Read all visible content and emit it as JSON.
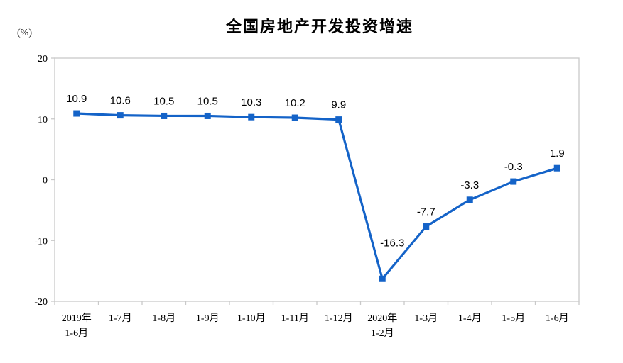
{
  "chart_data": {
    "type": "line",
    "title": "全国房地产开发投资增速",
    "unit": "(%)",
    "categories": [
      [
        "2019年",
        "1-6月"
      ],
      [
        "1-7月"
      ],
      [
        "1-8月"
      ],
      [
        "1-9月"
      ],
      [
        "1-10月"
      ],
      [
        "1-11月"
      ],
      [
        "1-12月"
      ],
      [
        "2020年",
        "1-2月"
      ],
      [
        "1-3月"
      ],
      [
        "1-4月"
      ],
      [
        "1-5月"
      ],
      [
        "1-6月"
      ]
    ],
    "values": [
      10.9,
      10.6,
      10.5,
      10.5,
      10.3,
      10.2,
      9.9,
      -16.3,
      -7.7,
      -3.3,
      -0.3,
      1.9
    ],
    "point_labels": [
      "10.9",
      "10.6",
      "10.5",
      "10.5",
      "10.3",
      "10.2",
      "9.9",
      "-16.3",
      "-7.7",
      "-3.3",
      "-0.3",
      "1.9"
    ],
    "ylim": [
      -20,
      20
    ],
    "yticks": [
      20,
      10,
      0,
      -10,
      -20
    ],
    "grid": false,
    "legend": false,
    "line_color": "#1463c8",
    "axis_color": "#c9c9c9",
    "text_color": "#000000"
  }
}
